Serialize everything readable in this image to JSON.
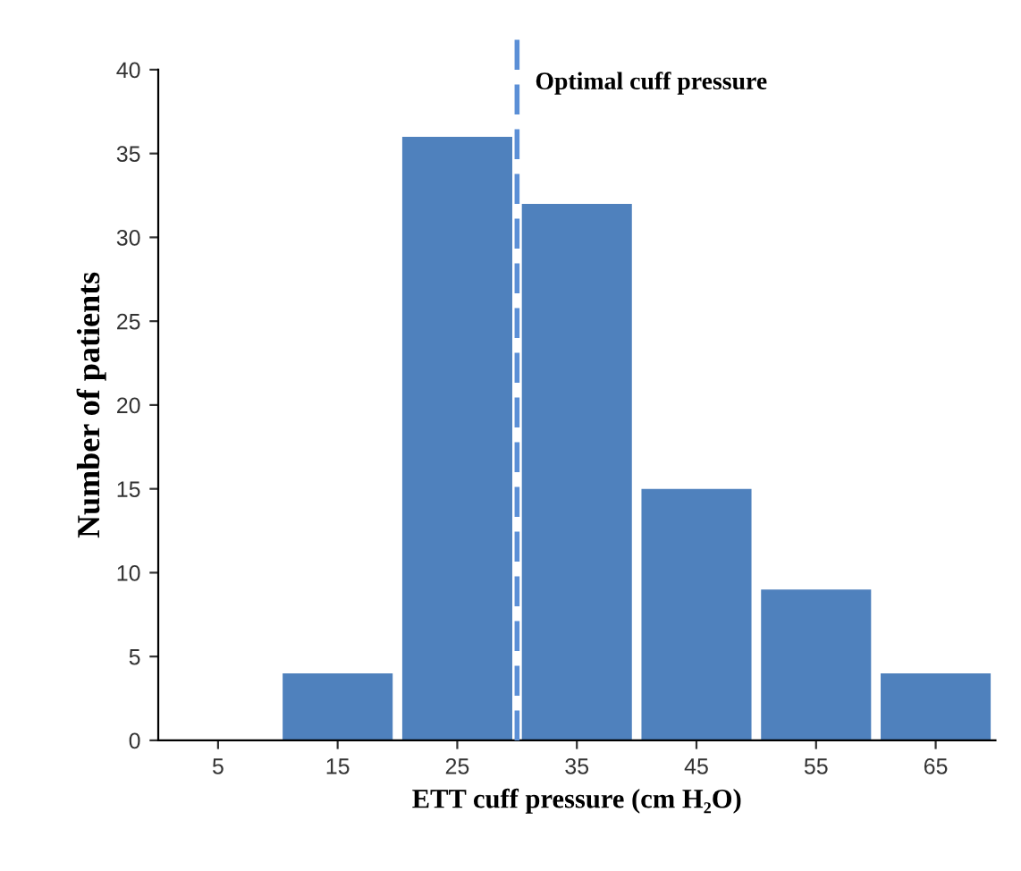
{
  "chart_data": {
    "type": "histogram",
    "xlabel": "ETT cuff pressure (cm H₂O)",
    "ylabel": "Number of patients",
    "bins": [
      0,
      10,
      20,
      30,
      40,
      50,
      60,
      70
    ],
    "values": [
      0,
      4,
      36,
      32,
      15,
      9,
      4
    ],
    "color": "#4f81bd",
    "xlim": [
      0,
      70
    ],
    "xticks": [
      5,
      15,
      25,
      35,
      45,
      55,
      65
    ],
    "ylim": [
      0,
      40
    ],
    "yticks": [
      0,
      5,
      10,
      15,
      20,
      25,
      30,
      35,
      40
    ],
    "ref_lines": [
      {
        "axis": "x",
        "value": 30,
        "label": "Optimal cuff pressure",
        "color": "#5b8fd6",
        "line_style": "dashed"
      }
    ],
    "grid": false,
    "legend": false
  }
}
